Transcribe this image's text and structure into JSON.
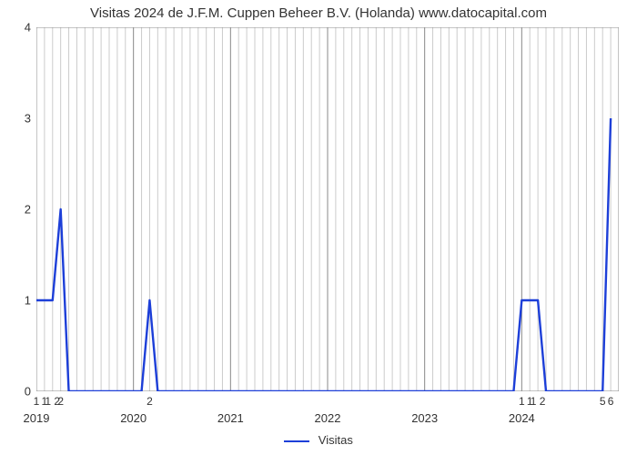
{
  "chart": {
    "type": "line",
    "title": "Visitas 2024 de J.F.M. Cuppen Beheer B.V. (Holanda) www.datocapital.com",
    "title_fontsize": 15,
    "title_color": "#333333",
    "background_color": "#ffffff",
    "plot_border_color": "#888888",
    "plot_border_width": 1,
    "xlim_index": [
      0,
      72
    ],
    "ylim": [
      0,
      4
    ],
    "y_ticks": [
      0,
      1,
      2,
      3,
      4
    ],
    "y_tick_labels": [
      "0",
      "1",
      "2",
      "3",
      "4"
    ],
    "y_tick_fontsize": 13,
    "v_gridline_color": "#cccccc",
    "v_gridline_width": 1,
    "v_gridline_indices_minor": [
      1,
      2,
      3,
      4,
      5,
      6,
      7,
      8,
      9,
      10,
      11,
      13,
      14,
      15,
      16,
      17,
      18,
      19,
      20,
      21,
      22,
      23,
      25,
      26,
      27,
      28,
      29,
      30,
      31,
      32,
      33,
      34,
      35,
      37,
      38,
      39,
      40,
      41,
      42,
      43,
      44,
      45,
      46,
      47,
      49,
      50,
      51,
      52,
      53,
      54,
      55,
      56,
      57,
      58,
      59,
      61,
      62,
      63,
      64,
      65,
      66,
      67,
      68,
      69,
      70,
      71
    ],
    "v_gridline_indices_major": [
      0,
      12,
      24,
      36,
      48,
      60,
      72
    ],
    "v_major_color": "#888888",
    "x_year_ticks": [
      {
        "index": 0,
        "label": "2019"
      },
      {
        "index": 12,
        "label": "2020"
      },
      {
        "index": 24,
        "label": "2021"
      },
      {
        "index": 36,
        "label": "2022"
      },
      {
        "index": 48,
        "label": "2023"
      },
      {
        "index": 60,
        "label": "2024"
      }
    ],
    "x_index_ticks": [
      {
        "index": 0,
        "label": "1"
      },
      {
        "index": 1,
        "label": "1"
      },
      {
        "index": 2,
        "label": "1 2"
      },
      {
        "index": 3,
        "label": "2"
      },
      {
        "index": 14,
        "label": "2"
      },
      {
        "index": 60,
        "label": "1"
      },
      {
        "index": 61,
        "label": "1"
      },
      {
        "index": 62,
        "label": "1 2"
      },
      {
        "index": 70,
        "label": "5"
      },
      {
        "index": 71,
        "label": "6"
      }
    ],
    "x_label_fontsize": 13,
    "series": {
      "name": "Visitas",
      "color": "#1d3fd8",
      "line_width": 2.4,
      "points": [
        {
          "i": 0,
          "v": 1
        },
        {
          "i": 1,
          "v": 1
        },
        {
          "i": 2,
          "v": 1
        },
        {
          "i": 3,
          "v": 2
        },
        {
          "i": 4,
          "v": 0
        },
        {
          "i": 5,
          "v": 0
        },
        {
          "i": 6,
          "v": 0
        },
        {
          "i": 7,
          "v": 0
        },
        {
          "i": 8,
          "v": 0
        },
        {
          "i": 9,
          "v": 0
        },
        {
          "i": 10,
          "v": 0
        },
        {
          "i": 11,
          "v": 0
        },
        {
          "i": 12,
          "v": 0
        },
        {
          "i": 13,
          "v": 0
        },
        {
          "i": 14,
          "v": 1
        },
        {
          "i": 15,
          "v": 0
        },
        {
          "i": 16,
          "v": 0
        },
        {
          "i": 17,
          "v": 0
        },
        {
          "i": 18,
          "v": 0
        },
        {
          "i": 19,
          "v": 0
        },
        {
          "i": 20,
          "v": 0
        },
        {
          "i": 21,
          "v": 0
        },
        {
          "i": 22,
          "v": 0
        },
        {
          "i": 23,
          "v": 0
        },
        {
          "i": 24,
          "v": 0
        },
        {
          "i": 25,
          "v": 0
        },
        {
          "i": 26,
          "v": 0
        },
        {
          "i": 27,
          "v": 0
        },
        {
          "i": 28,
          "v": 0
        },
        {
          "i": 29,
          "v": 0
        },
        {
          "i": 30,
          "v": 0
        },
        {
          "i": 31,
          "v": 0
        },
        {
          "i": 32,
          "v": 0
        },
        {
          "i": 33,
          "v": 0
        },
        {
          "i": 34,
          "v": 0
        },
        {
          "i": 35,
          "v": 0
        },
        {
          "i": 36,
          "v": 0
        },
        {
          "i": 37,
          "v": 0
        },
        {
          "i": 38,
          "v": 0
        },
        {
          "i": 39,
          "v": 0
        },
        {
          "i": 40,
          "v": 0
        },
        {
          "i": 41,
          "v": 0
        },
        {
          "i": 42,
          "v": 0
        },
        {
          "i": 43,
          "v": 0
        },
        {
          "i": 44,
          "v": 0
        },
        {
          "i": 45,
          "v": 0
        },
        {
          "i": 46,
          "v": 0
        },
        {
          "i": 47,
          "v": 0
        },
        {
          "i": 48,
          "v": 0
        },
        {
          "i": 49,
          "v": 0
        },
        {
          "i": 50,
          "v": 0
        },
        {
          "i": 51,
          "v": 0
        },
        {
          "i": 52,
          "v": 0
        },
        {
          "i": 53,
          "v": 0
        },
        {
          "i": 54,
          "v": 0
        },
        {
          "i": 55,
          "v": 0
        },
        {
          "i": 56,
          "v": 0
        },
        {
          "i": 57,
          "v": 0
        },
        {
          "i": 58,
          "v": 0
        },
        {
          "i": 59,
          "v": 0
        },
        {
          "i": 60,
          "v": 1
        },
        {
          "i": 61,
          "v": 1
        },
        {
          "i": 62,
          "v": 1
        },
        {
          "i": 63,
          "v": 0
        },
        {
          "i": 64,
          "v": 0
        },
        {
          "i": 65,
          "v": 0
        },
        {
          "i": 66,
          "v": 0
        },
        {
          "i": 67,
          "v": 0
        },
        {
          "i": 68,
          "v": 0
        },
        {
          "i": 69,
          "v": 0
        },
        {
          "i": 70,
          "v": 0
        },
        {
          "i": 71,
          "v": 3
        }
      ]
    },
    "legend": {
      "label": "Visitas",
      "line_color": "#1d3fd8",
      "fontsize": 13
    }
  }
}
